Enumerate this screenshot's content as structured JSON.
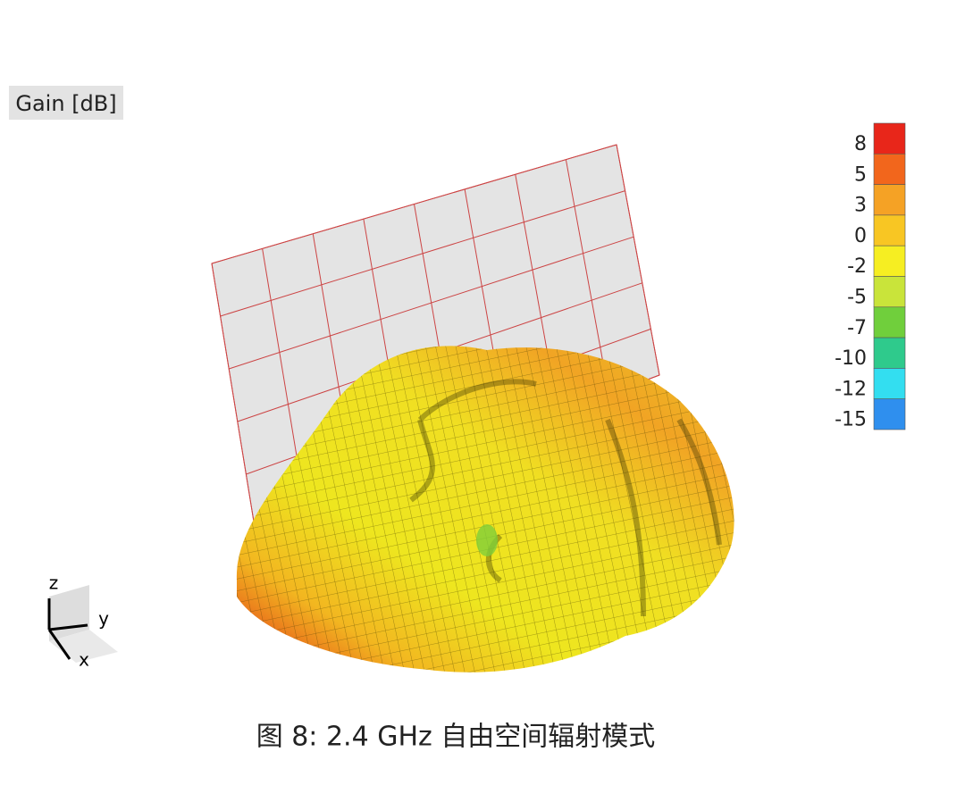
{
  "legend_title": "Gain [dB]",
  "colorbar": {
    "ticks": [
      8,
      5,
      3,
      0,
      -2,
      -5,
      -7,
      -10,
      -12,
      -15
    ],
    "colors": [
      "#e8261a",
      "#f2661c",
      "#f5a225",
      "#f8c623",
      "#f6ee22",
      "#c9e43a",
      "#70cf3c",
      "#2fca8c",
      "#33def0",
      "#2f8fee"
    ]
  },
  "axes": {
    "z": "z",
    "y": "y",
    "x": "x"
  },
  "caption": "图 8: 2.4 GHz 自由空间辐射模式"
}
